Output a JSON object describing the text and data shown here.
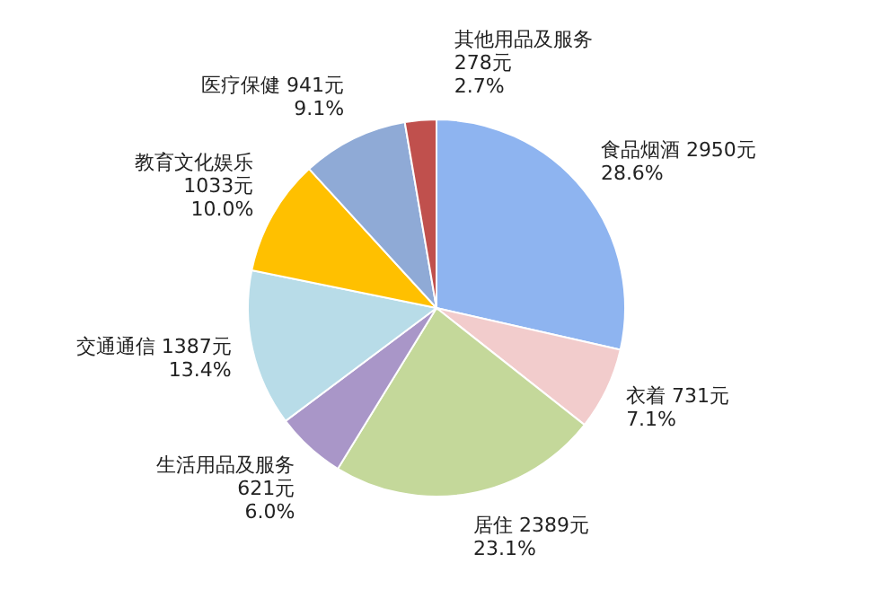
{
  "chart_data": {
    "type": "pie",
    "categories": [
      "食品烟酒",
      "衣着",
      "居住",
      "生活用品及服务",
      "交通通信",
      "教育文化娱乐",
      "医疗保健",
      "其他用品及服务"
    ],
    "values": [
      2950,
      731,
      2389,
      621,
      1387,
      1033,
      941,
      278
    ],
    "value_labels": [
      "2950元\n28.6%",
      "731元\n7.1%",
      "2389元\n23.1%",
      "621元\n6.0%",
      "1387元\n13.4%",
      "1033元\n10.0%",
      "941元\n9.1%",
      "278元\n2.7%"
    ],
    "colors": [
      "#8eb4f0",
      "#f2cccc",
      "#c4d89a",
      "#a996c8",
      "#b8dce8",
      "#ffc000",
      "#8faad6",
      "#c0504d"
    ]
  }
}
